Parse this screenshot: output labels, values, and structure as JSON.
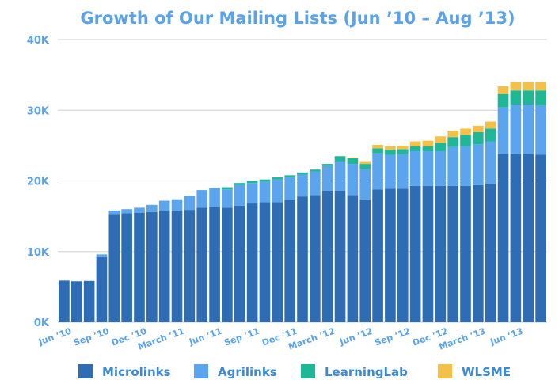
{
  "chart_data": {
    "type": "bar",
    "stacked": true,
    "title": "Growth of Our Mailing Lists (Jun ’10 – Aug ’13)",
    "xlabel": "",
    "ylabel": "",
    "ylim": [
      0,
      40000
    ],
    "yticks": [
      0,
      10000,
      20000,
      30000,
      40000
    ],
    "ytick_labels": [
      "0K",
      "10K",
      "20K",
      "30K",
      "40K"
    ],
    "grid": true,
    "legend_position": "bottom",
    "categories": [
      "Jun ’10",
      "Jul ’10",
      "Aug ’10",
      "Sep ’10",
      "Oct ’10",
      "Nov ’10",
      "Dec ’10",
      "Jan ’11",
      "Feb ’11",
      "Mar ’11",
      "Apr ’11",
      "May ’11",
      "Jun ’11",
      "Jul ’11",
      "Aug ’11",
      "Sep ’11",
      "Oct ’11",
      "Nov ’11",
      "Dec ’11",
      "Jan ’12",
      "Feb ’12",
      "Mar ’12",
      "Apr ’12",
      "May ’12",
      "Jun ’12",
      "Jul ’12",
      "Aug ’12",
      "Sep ’12",
      "Oct ’12",
      "Nov ’12",
      "Dec ’12",
      "Jan ’13",
      "Feb ’13",
      "Mar ’13",
      "Apr ’13",
      "May ’13",
      "Jun ’13",
      "Jul ’13",
      "Aug ’13"
    ],
    "x_tick_labels": [
      {
        "index": 0,
        "label": "Jun ’10"
      },
      {
        "index": 3,
        "label": "Sep ’10"
      },
      {
        "index": 6,
        "label": "Dec ’10"
      },
      {
        "index": 9,
        "label": "March ’11"
      },
      {
        "index": 12,
        "label": "Jun ’11"
      },
      {
        "index": 15,
        "label": "Sep ’11"
      },
      {
        "index": 18,
        "label": "Dec ’11"
      },
      {
        "index": 21,
        "label": "March ’12"
      },
      {
        "index": 24,
        "label": "Jun ’12"
      },
      {
        "index": 27,
        "label": "Sep ’12"
      },
      {
        "index": 30,
        "label": "Dec ’12"
      },
      {
        "index": 33,
        "label": "March ’13"
      },
      {
        "index": 36,
        "label": "Jun ’13"
      }
    ],
    "series": [
      {
        "name": "Microlinks",
        "color": "#2e6db3",
        "values": [
          5900,
          5800,
          5850,
          9200,
          15300,
          15400,
          15500,
          15600,
          15800,
          15800,
          15900,
          16200,
          16300,
          16200,
          16500,
          16800,
          17000,
          17000,
          17300,
          17800,
          18000,
          18600,
          18600,
          18000,
          17400,
          18800,
          18900,
          18900,
          19300,
          19300,
          19300,
          19300,
          19300,
          19400,
          19600,
          23800,
          23900,
          23800,
          23700
        ]
      },
      {
        "name": "Agrilinks",
        "color": "#5aa5ee",
        "values": [
          0,
          0,
          0,
          400,
          500,
          600,
          700,
          1000,
          1400,
          1600,
          2000,
          2500,
          2700,
          2600,
          2900,
          2900,
          2900,
          3200,
          3200,
          3100,
          3300,
          3500,
          4200,
          4400,
          4300,
          5100,
          4800,
          4900,
          4900,
          4900,
          4900,
          5500,
          5600,
          5800,
          6000,
          6600,
          6900,
          7000,
          7000
        ]
      },
      {
        "name": "LearningLab",
        "color": "#20b797",
        "values": [
          0,
          0,
          0,
          0,
          0,
          0,
          0,
          0,
          0,
          0,
          0,
          0,
          0,
          300,
          300,
          300,
          300,
          300,
          300,
          300,
          300,
          300,
          700,
          800,
          700,
          700,
          700,
          700,
          700,
          700,
          1200,
          1400,
          1600,
          1700,
          1800,
          1900,
          2000,
          2000,
          2100
        ]
      },
      {
        "name": "WLSME",
        "color": "#f5c04a",
        "values": [
          0,
          0,
          0,
          0,
          0,
          0,
          0,
          0,
          0,
          0,
          0,
          0,
          0,
          0,
          0,
          0,
          0,
          0,
          0,
          0,
          0,
          0,
          0,
          100,
          400,
          500,
          500,
          500,
          700,
          800,
          900,
          900,
          900,
          900,
          1000,
          1100,
          1200,
          1200,
          1200
        ]
      }
    ]
  }
}
